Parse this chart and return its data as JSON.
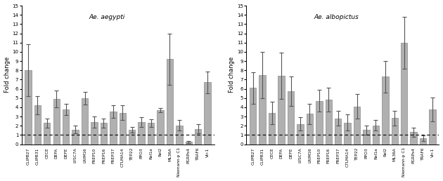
{
  "aegypti": {
    "labels": [
      "CLIPB27",
      "CLIPB31",
      "CECE",
      "DEFA",
      "DEFE",
      "LYSC7A",
      "LRIM16",
      "FREP10",
      "FREP16",
      "FREP37",
      "CTLMA14",
      "TEP22",
      "PPO3",
      "Rel1a",
      "Rel2",
      "ML36A",
      "Niemann-p C1",
      "PGRPs4",
      "TRAF6",
      "Vir-1"
    ],
    "values": [
      8.0,
      4.2,
      2.3,
      4.9,
      3.75,
      1.6,
      5.0,
      2.4,
      2.3,
      3.55,
      3.4,
      1.55,
      2.4,
      2.3,
      3.7,
      9.2,
      2.05,
      0.25,
      1.65,
      6.7
    ],
    "errors": [
      2.8,
      1.0,
      0.5,
      0.9,
      0.6,
      0.4,
      0.7,
      0.6,
      0.5,
      0.7,
      0.8,
      0.3,
      0.5,
      0.4,
      0.25,
      2.8,
      0.6,
      0.1,
      0.5,
      1.2
    ],
    "title": "Ae. aegypti",
    "ylabel": "Fold change"
  },
  "albopictus": {
    "labels": [
      "CLIPB27",
      "CLIPB31",
      "CECE",
      "DEFA",
      "DEFE",
      "LYSC7A",
      "LRIM16",
      "FREP10",
      "FREP16",
      "FREP37",
      "CTLMA14",
      "TEP22",
      "PPO3",
      "Rel1a",
      "Rel2",
      "ML36A",
      "Niemann-p C1",
      "PGRPs4",
      "TRAF6",
      "Vir-1"
    ],
    "values": [
      6.1,
      7.5,
      3.4,
      7.4,
      5.75,
      2.2,
      3.3,
      4.7,
      4.8,
      2.8,
      2.35,
      4.1,
      1.55,
      2.05,
      7.3,
      2.85,
      11.0,
      1.3,
      0.65,
      3.75
    ],
    "errors": [
      1.7,
      2.5,
      1.2,
      2.5,
      1.6,
      0.7,
      1.1,
      1.2,
      1.3,
      0.8,
      0.9,
      1.3,
      0.5,
      0.6,
      1.7,
      0.8,
      2.8,
      0.5,
      0.3,
      1.3
    ],
    "title": "Ae. albopictus",
    "ylabel": "Fold change"
  },
  "bar_color": "#b0b0b0",
  "bar_edgecolor": "#888888",
  "dashed_line_y": 1.0,
  "ylim": [
    0,
    15
  ],
  "yticks": [
    0,
    1,
    2,
    3,
    4,
    5,
    6,
    7,
    8,
    9,
    10,
    11,
    12,
    13,
    14,
    15
  ],
  "error_capsize": 2,
  "error_color": "#555555",
  "background_color": "#ffffff"
}
